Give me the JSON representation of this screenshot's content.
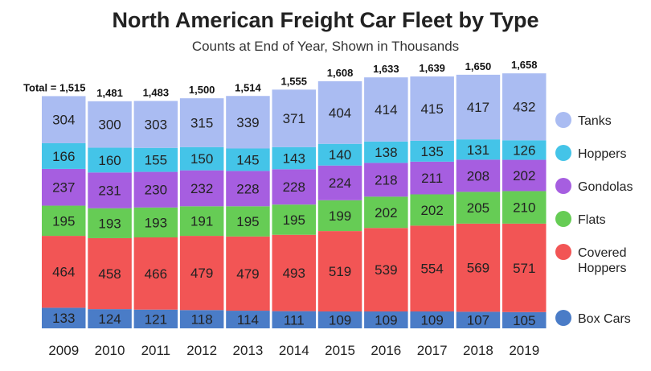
{
  "chart_data": {
    "type": "bar",
    "stacked": true,
    "title": "North American Freight Car Fleet by Type",
    "subtitle": "Counts at End of Year, Shown in Thousands",
    "total_prefix": "Total = ",
    "categories": [
      "2009",
      "2010",
      "2011",
      "2012",
      "2013",
      "2014",
      "2015",
      "2016",
      "2017",
      "2018",
      "2019"
    ],
    "totals": [
      "1,515",
      "1,481",
      "1,483",
      "1,500",
      "1,514",
      "1,555",
      "1,608",
      "1,633",
      "1,639",
      "1,650",
      "1,658"
    ],
    "series": [
      {
        "name": "Box Cars",
        "color": "#4a7cc7",
        "values": [
          133,
          124,
          121,
          118,
          114,
          111,
          109,
          109,
          109,
          107,
          105
        ]
      },
      {
        "name": "Covered Hoppers",
        "color": "#f25555",
        "values": [
          464,
          458,
          466,
          479,
          479,
          493,
          519,
          539,
          554,
          569,
          571
        ]
      },
      {
        "name": "Flats",
        "color": "#66cc55",
        "values": [
          195,
          193,
          193,
          191,
          195,
          195,
          199,
          202,
          202,
          205,
          210
        ]
      },
      {
        "name": "Gondolas",
        "color": "#a65ee0",
        "values": [
          237,
          231,
          230,
          232,
          228,
          228,
          224,
          218,
          211,
          208,
          202
        ]
      },
      {
        "name": "Hoppers",
        "color": "#44c4e8",
        "values": [
          166,
          160,
          155,
          150,
          145,
          143,
          140,
          138,
          135,
          131,
          126
        ]
      },
      {
        "name": "Tanks",
        "color": "#aabcf2",
        "values": [
          304,
          300,
          303,
          315,
          339,
          371,
          404,
          414,
          415,
          417,
          432
        ]
      }
    ]
  }
}
